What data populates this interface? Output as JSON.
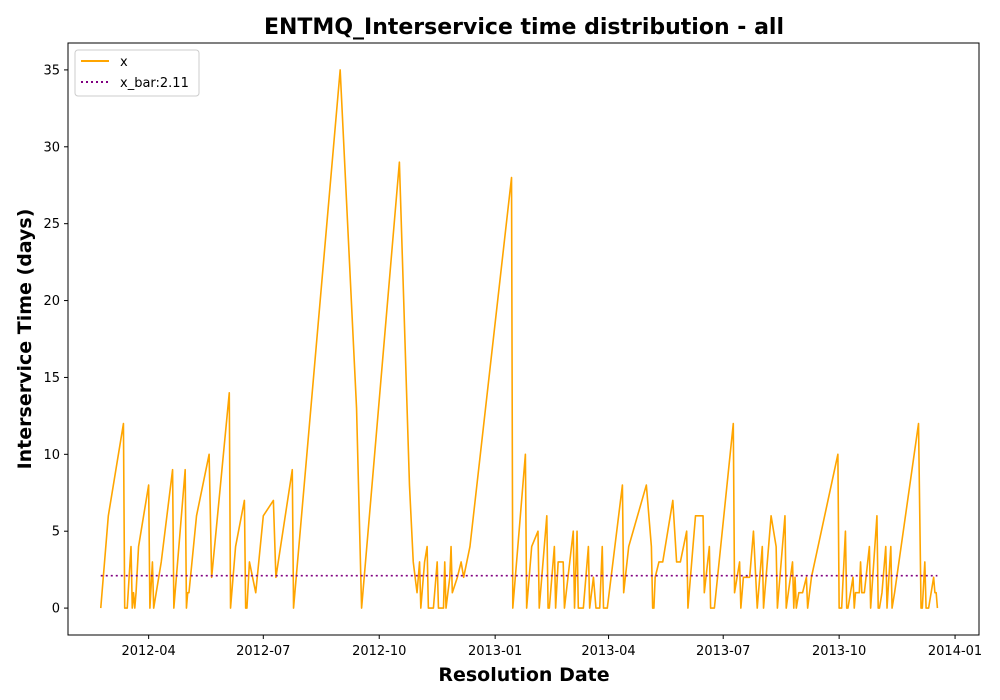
{
  "chart_data": {
    "type": "line",
    "title": "ENTMQ_Interservice time distribution - all",
    "xlabel": "Resolution Date",
    "ylabel": "Interservice Time (days)",
    "x_type": "date",
    "xlim": [
      "2012-01-28",
      "2014-01-20"
    ],
    "ylim": [
      -1.75,
      36.75
    ],
    "yticks": [
      0,
      5,
      10,
      15,
      20,
      25,
      30,
      35
    ],
    "xticks": [
      {
        "date": "2012-04-01",
        "label": "2012-04"
      },
      {
        "date": "2012-07-01",
        "label": "2012-07"
      },
      {
        "date": "2012-10-01",
        "label": "2012-10"
      },
      {
        "date": "2013-01-01",
        "label": "2013-01"
      },
      {
        "date": "2013-04-01",
        "label": "2013-04"
      },
      {
        "date": "2013-07-01",
        "label": "2013-07"
      },
      {
        "date": "2013-10-01",
        "label": "2013-10"
      },
      {
        "date": "2014-01-01",
        "label": "2014-01"
      }
    ],
    "legend_position": "top-left",
    "grid": false,
    "series": [
      {
        "name": "x",
        "color": "#FFA500",
        "style": "solid",
        "points": [
          [
            "2012-02-23",
            0
          ],
          [
            "2012-02-29",
            6
          ],
          [
            "2012-03-12",
            12
          ],
          [
            "2012-03-13",
            0
          ],
          [
            "2012-03-15",
            0
          ],
          [
            "2012-03-18",
            4
          ],
          [
            "2012-03-19",
            0
          ],
          [
            "2012-03-20",
            1
          ],
          [
            "2012-03-21",
            0
          ],
          [
            "2012-03-22",
            1
          ],
          [
            "2012-03-24",
            4
          ],
          [
            "2012-04-01",
            8
          ],
          [
            "2012-04-02",
            0
          ],
          [
            "2012-04-04",
            3
          ],
          [
            "2012-04-05",
            0
          ],
          [
            "2012-04-09",
            2
          ],
          [
            "2012-04-11",
            3
          ],
          [
            "2012-04-20",
            9
          ],
          [
            "2012-04-21",
            0
          ],
          [
            "2012-04-30",
            9
          ],
          [
            "2012-05-01",
            0
          ],
          [
            "2012-05-02",
            1
          ],
          [
            "2012-05-03",
            1
          ],
          [
            "2012-05-09",
            6
          ],
          [
            "2012-05-19",
            10
          ],
          [
            "2012-05-21",
            2
          ],
          [
            "2012-06-04",
            14
          ],
          [
            "2012-06-05",
            0
          ],
          [
            "2012-06-09",
            4
          ],
          [
            "2012-06-16",
            7
          ],
          [
            "2012-06-17",
            0
          ],
          [
            "2012-06-18",
            0
          ],
          [
            "2012-06-20",
            3
          ],
          [
            "2012-06-25",
            1
          ],
          [
            "2012-07-01",
            6
          ],
          [
            "2012-07-09",
            7
          ],
          [
            "2012-07-11",
            2
          ],
          [
            "2012-07-24",
            9
          ],
          [
            "2012-07-25",
            0
          ],
          [
            "2012-08-31",
            35
          ],
          [
            "2012-09-13",
            13
          ],
          [
            "2012-09-17",
            0
          ],
          [
            "2012-10-17",
            29
          ],
          [
            "2012-10-25",
            8
          ],
          [
            "2012-10-28",
            3
          ],
          [
            "2012-10-31",
            1
          ],
          [
            "2012-11-02",
            3
          ],
          [
            "2012-11-03",
            0
          ],
          [
            "2012-11-06",
            3
          ],
          [
            "2012-11-08",
            4
          ],
          [
            "2012-11-09",
            0
          ],
          [
            "2012-11-13",
            0
          ],
          [
            "2012-11-16",
            3
          ],
          [
            "2012-11-17",
            0
          ],
          [
            "2012-11-21",
            0
          ],
          [
            "2012-11-22",
            3
          ],
          [
            "2012-11-23",
            0
          ],
          [
            "2012-11-26",
            2
          ],
          [
            "2012-11-27",
            4
          ],
          [
            "2012-11-28",
            1
          ],
          [
            "2012-12-02",
            2
          ],
          [
            "2012-12-05",
            3
          ],
          [
            "2012-12-07",
            2
          ],
          [
            "2012-12-12",
            4
          ],
          [
            "2013-01-14",
            28
          ],
          [
            "2013-01-15",
            0
          ],
          [
            "2013-01-19",
            4
          ],
          [
            "2013-01-25",
            10
          ],
          [
            "2013-01-26",
            0
          ],
          [
            "2013-01-30",
            4
          ],
          [
            "2013-02-04",
            5
          ],
          [
            "2013-02-05",
            0
          ],
          [
            "2013-02-09",
            4
          ],
          [
            "2013-02-11",
            6
          ],
          [
            "2013-02-12",
            0
          ],
          [
            "2013-02-13",
            0
          ],
          [
            "2013-02-14",
            1
          ],
          [
            "2013-02-17",
            4
          ],
          [
            "2013-02-18",
            0
          ],
          [
            "2013-02-20",
            3
          ],
          [
            "2013-02-24",
            3
          ],
          [
            "2013-02-25",
            0
          ],
          [
            "2013-03-04",
            5
          ],
          [
            "2013-03-05",
            0
          ],
          [
            "2013-03-07",
            5
          ],
          [
            "2013-03-08",
            0
          ],
          [
            "2013-03-12",
            0
          ],
          [
            "2013-03-16",
            4
          ],
          [
            "2013-03-17",
            0
          ],
          [
            "2013-03-20",
            2
          ],
          [
            "2013-03-22",
            0
          ],
          [
            "2013-03-25",
            0
          ],
          [
            "2013-03-27",
            4
          ],
          [
            "2013-03-28",
            0
          ],
          [
            "2013-03-31",
            0
          ],
          [
            "2013-04-12",
            8
          ],
          [
            "2013-04-13",
            1
          ],
          [
            "2013-04-17",
            4
          ],
          [
            "2013-05-01",
            8
          ],
          [
            "2013-05-05",
            4
          ],
          [
            "2013-05-06",
            0
          ],
          [
            "2013-05-07",
            0
          ],
          [
            "2013-05-08",
            2
          ],
          [
            "2013-05-11",
            3
          ],
          [
            "2013-05-14",
            3
          ],
          [
            "2013-05-22",
            7
          ],
          [
            "2013-05-25",
            3
          ],
          [
            "2013-05-28",
            3
          ],
          [
            "2013-06-02",
            5
          ],
          [
            "2013-06-03",
            0
          ],
          [
            "2013-06-09",
            6
          ],
          [
            "2013-06-15",
            6
          ],
          [
            "2013-06-16",
            1
          ],
          [
            "2013-06-20",
            4
          ],
          [
            "2013-06-21",
            0
          ],
          [
            "2013-06-24",
            0
          ],
          [
            "2013-07-09",
            12
          ],
          [
            "2013-07-10",
            1
          ],
          [
            "2013-07-14",
            3
          ],
          [
            "2013-07-15",
            0
          ],
          [
            "2013-07-17",
            2
          ],
          [
            "2013-07-22",
            2
          ],
          [
            "2013-07-25",
            5
          ],
          [
            "2013-07-28",
            0
          ],
          [
            "2013-08-01",
            4
          ],
          [
            "2013-08-02",
            0
          ],
          [
            "2013-08-03",
            1
          ],
          [
            "2013-08-08",
            6
          ],
          [
            "2013-08-12",
            4
          ],
          [
            "2013-08-13",
            0
          ],
          [
            "2013-08-19",
            6
          ],
          [
            "2013-08-20",
            0
          ],
          [
            "2013-08-25",
            3
          ],
          [
            "2013-08-26",
            0
          ],
          [
            "2013-08-27",
            2
          ],
          [
            "2013-08-28",
            0
          ],
          [
            "2013-08-30",
            1
          ],
          [
            "2013-09-02",
            1
          ],
          [
            "2013-09-05",
            2
          ],
          [
            "2013-09-06",
            0
          ],
          [
            "2013-09-09",
            2
          ],
          [
            "2013-09-30",
            10
          ],
          [
            "2013-10-01",
            0
          ],
          [
            "2013-10-03",
            0
          ],
          [
            "2013-10-06",
            5
          ],
          [
            "2013-10-07",
            0
          ],
          [
            "2013-10-08",
            0
          ],
          [
            "2013-10-12",
            2
          ],
          [
            "2013-10-13",
            0
          ],
          [
            "2013-10-14",
            1
          ],
          [
            "2013-10-17",
            1
          ],
          [
            "2013-10-18",
            3
          ],
          [
            "2013-10-19",
            1
          ],
          [
            "2013-10-21",
            1
          ],
          [
            "2013-10-25",
            4
          ],
          [
            "2013-10-26",
            0
          ],
          [
            "2013-10-31",
            6
          ],
          [
            "2013-11-01",
            0
          ],
          [
            "2013-11-02",
            0
          ],
          [
            "2013-11-04",
            1
          ],
          [
            "2013-11-07",
            4
          ],
          [
            "2013-11-08",
            0
          ],
          [
            "2013-11-11",
            4
          ],
          [
            "2013-11-12",
            0
          ],
          [
            "2013-11-14",
            1
          ],
          [
            "2013-12-03",
            12
          ],
          [
            "2013-12-05",
            0
          ],
          [
            "2013-12-06",
            0
          ],
          [
            "2013-12-08",
            3
          ],
          [
            "2013-12-09",
            0
          ],
          [
            "2013-12-11",
            0
          ],
          [
            "2013-12-15",
            2
          ],
          [
            "2013-12-16",
            1
          ],
          [
            "2013-12-17",
            1
          ],
          [
            "2013-12-18",
            0
          ]
        ]
      },
      {
        "name": "x_bar:2.11",
        "color": "#800080",
        "style": "dotted",
        "points": [
          [
            "2012-02-23",
            2.11
          ],
          [
            "2013-12-18",
            2.11
          ]
        ]
      }
    ]
  }
}
